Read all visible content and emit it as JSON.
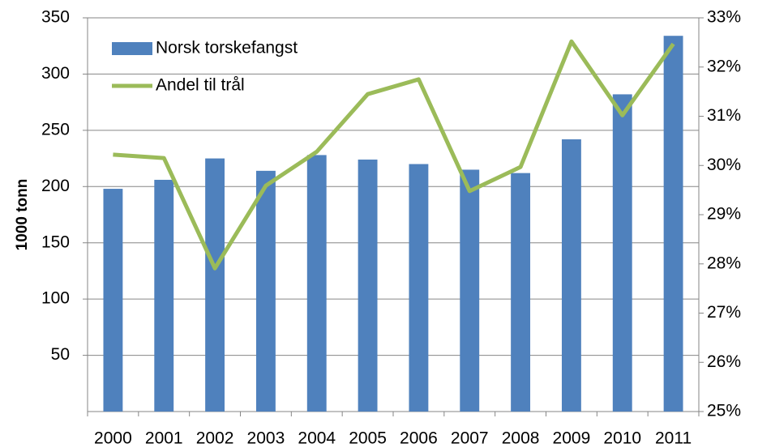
{
  "chart_data": {
    "type": "bar_line",
    "y_axis_label": "1000 tonn",
    "categories": [
      "2000",
      "2001",
      "2002",
      "2003",
      "2004",
      "2005",
      "2006",
      "2007",
      "2008",
      "2009",
      "2010",
      "2011"
    ],
    "series": [
      {
        "name": "Norsk torskefangst",
        "type": "bar",
        "color": "#4f81bd",
        "values": [
          198,
          206,
          225,
          214,
          228,
          224,
          220,
          215,
          212,
          242,
          282,
          334
        ]
      },
      {
        "name": "Andel til trål",
        "type": "line",
        "axis": "y2",
        "color": "#9bbb59",
        "values": [
          30.22,
          30.15,
          27.91,
          29.59,
          30.28,
          31.45,
          31.75,
          29.48,
          29.97,
          32.52,
          31.02,
          32.47
        ]
      }
    ],
    "ylim": [
      0,
      350
    ],
    "yticks": [
      50,
      100,
      150,
      200,
      250,
      300,
      350
    ],
    "y2lim": [
      25,
      33
    ],
    "y2ticks": [
      {
        "value": 25,
        "label": "25%"
      },
      {
        "value": 26,
        "label": "26%"
      },
      {
        "value": 27,
        "label": "27%"
      },
      {
        "value": 28,
        "label": "28%"
      },
      {
        "value": 29,
        "label": "29%"
      },
      {
        "value": 30,
        "label": "30%"
      },
      {
        "value": 31,
        "label": "31%"
      },
      {
        "value": 32,
        "label": "32%"
      },
      {
        "value": 33,
        "label": "33%"
      }
    ],
    "grid": true,
    "legend": "upper-left"
  }
}
